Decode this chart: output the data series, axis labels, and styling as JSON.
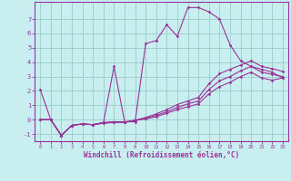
{
  "xlabel": "Windchill (Refroidissement éolien,°C)",
  "bg_color": "#c8eef0",
  "line_color": "#993399",
  "grid_color": "#99cccc",
  "ylim": [
    -1.5,
    8.2
  ],
  "xlim": [
    -0.5,
    23.5
  ],
  "yticks": [
    -1,
    0,
    1,
    2,
    3,
    4,
    5,
    6,
    7
  ],
  "xticks": [
    0,
    1,
    2,
    3,
    4,
    5,
    6,
    7,
    8,
    9,
    10,
    11,
    12,
    13,
    14,
    15,
    16,
    17,
    18,
    19,
    20,
    21,
    22,
    23
  ],
  "curves": [
    [
      2.1,
      0.0,
      -1.1,
      -0.4,
      -0.3,
      -0.35,
      -0.2,
      3.7,
      -0.15,
      -0.15,
      5.3,
      5.5,
      6.6,
      5.8,
      7.8,
      7.8,
      7.5,
      7.0,
      5.2,
      4.1,
      3.7,
      3.5,
      3.3,
      2.9
    ],
    [
      0.0,
      0.0,
      -1.1,
      -0.4,
      -0.3,
      -0.35,
      -0.2,
      -0.15,
      -0.15,
      -0.05,
      0.15,
      0.4,
      0.7,
      1.05,
      1.3,
      1.55,
      2.5,
      3.2,
      3.5,
      3.8,
      4.1,
      3.7,
      3.55,
      3.35
    ],
    [
      0.0,
      0.0,
      -1.1,
      -0.4,
      -0.3,
      -0.35,
      -0.25,
      -0.15,
      -0.2,
      -0.05,
      0.1,
      0.3,
      0.55,
      0.85,
      1.1,
      1.3,
      2.1,
      2.7,
      3.0,
      3.4,
      3.7,
      3.3,
      3.15,
      3.0
    ],
    [
      0.0,
      0.0,
      -1.1,
      -0.4,
      -0.3,
      -0.35,
      -0.25,
      -0.2,
      -0.2,
      -0.05,
      0.05,
      0.2,
      0.45,
      0.7,
      0.9,
      1.1,
      1.8,
      2.3,
      2.6,
      3.0,
      3.3,
      2.9,
      2.75,
      2.9
    ]
  ]
}
